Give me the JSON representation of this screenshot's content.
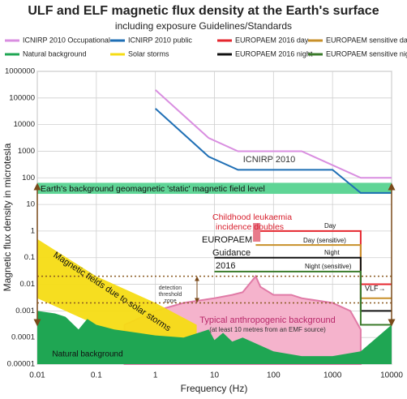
{
  "chart_data": {
    "type": "line",
    "title": "ULF and ELF magnetic flux density at the Earth's surface",
    "subtitle": "including exposure Guidelines/Standards",
    "x_label": "Frequency (Hz)",
    "y_label": "Magnetic flux density in microtesla",
    "log_x": true,
    "log_y": true,
    "grid": true,
    "xlim": [
      0.01,
      10000
    ],
    "ylim": [
      1e-05,
      1000000
    ],
    "xticks": [
      0.01,
      0.1,
      1,
      10,
      100,
      1000,
      10000
    ],
    "yticks": [
      1e-05,
      0.0001,
      0.001,
      0.01,
      0.1,
      1,
      10,
      100,
      1000,
      10000,
      100000,
      1000000
    ],
    "series": [
      {
        "name": "ICNIRP 2010 Occupational",
        "color": "#d98ee0",
        "kind": "line",
        "x": [
          1,
          8,
          25,
          300,
          3000,
          10000
        ],
        "values": [
          200000,
          3125,
          1000,
          1000,
          100,
          100
        ]
      },
      {
        "name": "ICNIRP 2010 public",
        "color": "#1f6fb5",
        "kind": "line",
        "x": [
          1,
          8,
          25,
          1000,
          3000,
          10000
        ],
        "values": [
          40000,
          625,
          200,
          200,
          27,
          27
        ]
      },
      {
        "name": "EUROPAEM 2016 day",
        "color": "#e5262e",
        "kind": "line",
        "x": [
          50,
          3000,
          3000,
          10000
        ],
        "values": [
          1,
          1,
          0.01,
          0.01
        ]
      },
      {
        "name": "EUROPAEM sensitive day",
        "color": "#c8902a",
        "kind": "line",
        "x": [
          50,
          3000,
          3000,
          10000
        ],
        "values": [
          0.3,
          0.3,
          0.003,
          0.003
        ]
      },
      {
        "name": "Natural background",
        "color": "#1fa653",
        "kind": "area",
        "x": [
          0.01,
          0.02,
          0.03,
          0.05,
          0.07,
          0.1,
          0.2,
          0.5,
          1,
          3,
          8,
          10,
          14,
          20,
          30,
          100,
          300,
          1000,
          3000,
          5000,
          10000
        ],
        "values": [
          0.001,
          0.0008,
          0.0006,
          0.0002,
          0.0005,
          0.0003,
          0.0002,
          0.00015,
          0.00012,
          0.0001,
          0.0002,
          8e-05,
          0.00015,
          7e-05,
          0.0001,
          3e-05,
          2e-05,
          2e-05,
          3e-05,
          8e-05,
          0.0003
        ]
      },
      {
        "name": "Solar storms",
        "color": "#f5dc14",
        "kind": "band",
        "x": [
          0.01,
          0.1,
          1,
          5
        ],
        "values": [
          0.5,
          0.02,
          0.002,
          0.0003
        ],
        "base": [
          0.003,
          0.0003,
          2e-05,
          1e-05
        ]
      },
      {
        "name": "EUROPAEM 2016 night",
        "color": "#111111",
        "kind": "line",
        "x": [
          10,
          3000,
          3000,
          10000
        ],
        "values": [
          0.1,
          0.1,
          0.001,
          0.001
        ]
      },
      {
        "name": "EUROPAEM sensitive night",
        "color": "#3a7a2a",
        "kind": "line",
        "x": [
          10,
          3000,
          3000,
          10000
        ],
        "values": [
          0.03,
          0.03,
          0.0003,
          0.0003
        ]
      }
    ],
    "anthropogenic": {
      "color": "#f5b3cc",
      "x": [
        0.3,
        1,
        3,
        10,
        20,
        30,
        50,
        60,
        100,
        200,
        300,
        1000,
        2000,
        3000
      ],
      "values": [
        0.0003,
        0.001,
        0.002,
        0.003,
        0.004,
        0.005,
        0.02,
        0.008,
        0.004,
        0.004,
        0.003,
        0.002,
        0.001,
        0.0002
      ]
    },
    "geomagnetic_range": [
      25,
      65
    ],
    "detection_range": [
      0.002,
      0.02
    ],
    "leukaemia_x": [
      45,
      60
    ],
    "leukaemia_range": [
      0.4,
      2
    ],
    "notes": {
      "icnirp": "ICNIRP 2010",
      "geomagnetic": "Earth's background geomagnetic 'static' magnetic field level",
      "leukaemia_1": "Childhood leukaemia",
      "leukaemia_2": "incidence doubles",
      "europaem_1": "EUROPAEM",
      "europaem_2": "Guidance",
      "europaem_3": "2016",
      "day": "Day",
      "day_sensitive": "Day (sensitive)",
      "night": "Night",
      "night_sensitive": "Night (sensitive)",
      "detection_1": "detection",
      "detection_2": "threshold",
      "detection_3": "zone",
      "solar": "Magnetic fields due to solar storms",
      "anthro_1": "Typical anthropogenic background",
      "anthro_2": "(at least 10 metres from an EMF source)",
      "natural": "Natural background",
      "vlf": "VLF→"
    }
  }
}
